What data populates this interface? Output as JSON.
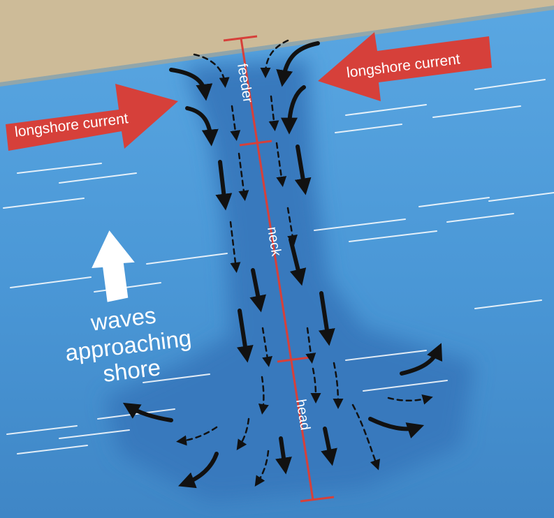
{
  "longshore_left": {
    "label": "longshore current"
  },
  "longshore_right": {
    "label": "longshore current"
  },
  "waves": {
    "line1": "waves",
    "line2": "approaching",
    "line3": "shore"
  },
  "segments": {
    "feeder": "feeder",
    "neck": "neck",
    "head": "head"
  },
  "colors": {
    "sand": "#cdbb98",
    "water": "#4e9ad6",
    "rip_channel": "#3a7dc0",
    "red": "#d6403a",
    "flow": "#111111",
    "white": "#ffffff"
  }
}
